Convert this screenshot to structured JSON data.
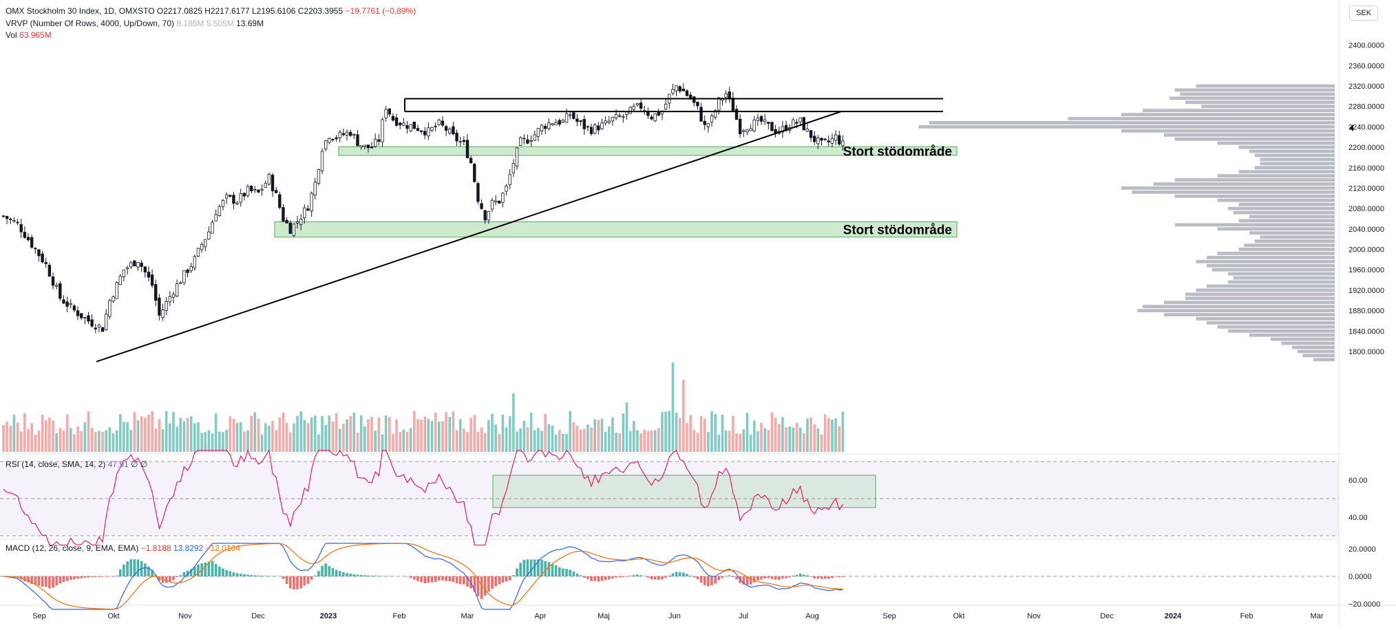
{
  "legend": {
    "symbol": "OMX Stockholm 30 Index, 1D, OMXSTO",
    "ohlc": "O2217.0825  H2217.6177  L2195.6106  C2203.3955",
    "change": "−19.7761 (−0.89%)",
    "vrvp_label": "VRVP (Number Of Rows, 4000, Up/Down, 70)",
    "vrvp_values": "8.186M  5.505M",
    "vrvp_total": "13.69M",
    "vol_label": "Vol",
    "vol_value": "63.965M",
    "rsi_label": "RSI (14, close, SMA, 14, 2)",
    "rsi_value": "47.91",
    "rsi_extra": "∅  ∅",
    "macd_label": "MACD (12, 26, close, 9, EMA, EMA)",
    "macd_values": [
      "−1.8188",
      "13.8292",
      "−12.0104"
    ]
  },
  "currency": "SEK",
  "annotations": [
    "Stort stödområde",
    "Stort stödområde"
  ],
  "colors": {
    "up": "#26a69a",
    "down": "#ef5350",
    "line": "#000000",
    "zone": "#4caf50",
    "profile": "#b2b5be",
    "rsi": "#e91e63",
    "macd": "#2962ff",
    "signal": "#ff6d00"
  },
  "chart_data": [
    {
      "type": "candlestick",
      "title": "OMX Stockholm 30 Index, 1D, OMXSTO",
      "y_ticks": [
        1800,
        1840,
        1880,
        1920,
        1960,
        2000,
        2040,
        2080,
        2120,
        2160,
        2200,
        2240,
        2280,
        2320,
        2360,
        2400
      ],
      "y_tick_labels": [
        "1800.0000",
        "1840.0000",
        "1880.0000",
        "1920.0000",
        "1960.0000",
        "2000.0000",
        "2040.0000",
        "2080.0000",
        "2120.0000",
        "2160.0000",
        "2200.0000",
        "2240.0000",
        "2280.0000",
        "2320.0000",
        "2360.0000",
        "2400.0000"
      ],
      "ylim": [
        1775,
        2435
      ],
      "x_ticks": [
        "Sep",
        "Okt",
        "Nov",
        "Dec",
        "2023",
        "Feb",
        "Mar",
        "Apr",
        "Maj",
        "Jun",
        "Jul",
        "Aug",
        "Sep",
        "Okt",
        "Nov",
        "Dec",
        "2024",
        "Feb",
        "Mar"
      ],
      "last_close": 2203.3955,
      "price_path": [
        [
          0,
          2065
        ],
        [
          4,
          2050
        ],
        [
          8,
          2010
        ],
        [
          12,
          1970
        ],
        [
          16,
          1905
        ],
        [
          20,
          1880
        ],
        [
          24,
          1860
        ],
        [
          28,
          1845
        ],
        [
          30,
          1900
        ],
        [
          34,
          1960
        ],
        [
          38,
          1980
        ],
        [
          42,
          1930
        ],
        [
          44,
          1870
        ],
        [
          48,
          1920
        ],
        [
          52,
          1960
        ],
        [
          54,
          1980
        ],
        [
          56,
          2010
        ],
        [
          58,
          2035
        ],
        [
          60,
          2075
        ],
        [
          63,
          2100
        ],
        [
          66,
          2095
        ],
        [
          69,
          2115
        ],
        [
          72,
          2110
        ],
        [
          75,
          2140
        ],
        [
          77,
          2105
        ],
        [
          79,
          2060
        ],
        [
          81,
          2040
        ],
        [
          83,
          2055
        ],
        [
          86,
          2085
        ],
        [
          88,
          2130
        ],
        [
          90,
          2200
        ],
        [
          92,
          2225
        ],
        [
          94,
          2220
        ],
        [
          98,
          2230
        ],
        [
          100,
          2210
        ],
        [
          102,
          2200
        ],
        [
          104,
          2200
        ],
        [
          106,
          2215
        ],
        [
          108,
          2280
        ],
        [
          110,
          2255
        ],
        [
          113,
          2245
        ],
        [
          116,
          2240
        ],
        [
          118,
          2235
        ],
        [
          120,
          2230
        ],
        [
          123,
          2245
        ],
        [
          125,
          2235
        ],
        [
          127,
          2220
        ],
        [
          130,
          2205
        ],
        [
          132,
          2170
        ],
        [
          134,
          2100
        ],
        [
          136,
          2065
        ],
        [
          138,
          2090
        ],
        [
          140,
          2095
        ],
        [
          142,
          2120
        ],
        [
          144,
          2170
        ],
        [
          146,
          2210
        ],
        [
          148,
          2215
        ],
        [
          150,
          2225
        ],
        [
          152,
          2240
        ],
        [
          155,
          2250
        ],
        [
          158,
          2250
        ],
        [
          160,
          2265
        ],
        [
          162,
          2250
        ],
        [
          164,
          2240
        ],
        [
          166,
          2235
        ],
        [
          168,
          2240
        ],
        [
          170,
          2245
        ],
        [
          172,
          2255
        ],
        [
          175,
          2260
        ],
        [
          178,
          2275
        ],
        [
          180,
          2280
        ],
        [
          183,
          2260
        ],
        [
          186,
          2270
        ],
        [
          188,
          2300
        ],
        [
          190,
          2320
        ],
        [
          192,
          2310
        ],
        [
          194,
          2295
        ],
        [
          196,
          2275
        ],
        [
          198,
          2240
        ],
        [
          200,
          2255
        ],
        [
          202,
          2290
        ],
        [
          204,
          2305
        ],
        [
          206,
          2275
        ],
        [
          208,
          2235
        ],
        [
          211,
          2245
        ],
        [
          214,
          2250
        ],
        [
          216,
          2240
        ],
        [
          219,
          2230
        ],
        [
          222,
          2245
        ],
        [
          225,
          2250
        ],
        [
          227,
          2230
        ],
        [
          229,
          2215
        ],
        [
          231,
          2205
        ],
        [
          233,
          2210
        ],
        [
          235,
          2220
        ],
        [
          237,
          2205
        ]
      ],
      "volume_profile": [
        [
          2320,
          130
        ],
        [
          2312,
          150
        ],
        [
          2304,
          145
        ],
        [
          2296,
          155
        ],
        [
          2288,
          140
        ],
        [
          2280,
          125
        ],
        [
          2272,
          180
        ],
        [
          2264,
          200
        ],
        [
          2256,
          250
        ],
        [
          2248,
          380
        ],
        [
          2240,
          390
        ],
        [
          2232,
          200
        ],
        [
          2224,
          160
        ],
        [
          2216,
          150
        ],
        [
          2208,
          110
        ],
        [
          2200,
          90
        ],
        [
          2192,
          80
        ],
        [
          2184,
          75
        ],
        [
          2176,
          70
        ],
        [
          2168,
          70
        ],
        [
          2160,
          75
        ],
        [
          2152,
          90
        ],
        [
          2144,
          110
        ],
        [
          2136,
          150
        ],
        [
          2128,
          170
        ],
        [
          2120,
          200
        ],
        [
          2112,
          190
        ],
        [
          2104,
          150
        ],
        [
          2096,
          110
        ],
        [
          2088,
          90
        ],
        [
          2080,
          100
        ],
        [
          2072,
          95
        ],
        [
          2064,
          80
        ],
        [
          2056,
          90
        ],
        [
          2048,
          150
        ],
        [
          2040,
          110
        ],
        [
          2032,
          80
        ],
        [
          2024,
          70
        ],
        [
          2016,
          75
        ],
        [
          2008,
          85
        ],
        [
          2000,
          90
        ],
        [
          1992,
          110
        ],
        [
          1984,
          120
        ],
        [
          1976,
          130
        ],
        [
          1968,
          120
        ],
        [
          1960,
          115
        ],
        [
          1952,
          100
        ],
        [
          1944,
          95
        ],
        [
          1936,
          100
        ],
        [
          1928,
          120
        ],
        [
          1920,
          130
        ],
        [
          1912,
          140
        ],
        [
          1904,
          140
        ],
        [
          1896,
          160
        ],
        [
          1888,
          180
        ],
        [
          1880,
          185
        ],
        [
          1872,
          160
        ],
        [
          1864,
          130
        ],
        [
          1856,
          120
        ],
        [
          1848,
          110
        ],
        [
          1840,
          100
        ],
        [
          1832,
          80
        ],
        [
          1824,
          60
        ],
        [
          1816,
          50
        ],
        [
          1808,
          40
        ],
        [
          1800,
          35
        ],
        [
          1792,
          30
        ],
        [
          1784,
          20
        ]
      ]
    },
    {
      "type": "line",
      "title": "RSI (14, close, SMA, 14, 2)",
      "y_tick_labels": [
        "60.00",
        "40.00"
      ],
      "last_value": 47.91
    },
    {
      "type": "bar",
      "title": "MACD (12, 26, close, 9, EMA, EMA)",
      "y_tick_labels": [
        "20.0000",
        "0.0000",
        "−20.0000"
      ],
      "values": {
        "histogram": -1.8188,
        "macd": 13.8292,
        "signal": -12.0104
      }
    }
  ]
}
